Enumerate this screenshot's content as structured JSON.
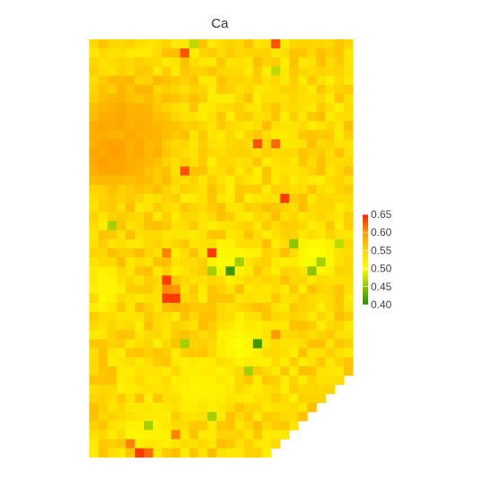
{
  "chart_data": {
    "type": "heatmap",
    "title": "Ca",
    "xlabel": "",
    "ylabel": "",
    "grid": false,
    "legend_placement": "right",
    "color_scale": {
      "min": 0.4,
      "max": 0.65,
      "ticks": [
        "0.65",
        "0.60",
        "0.55",
        "0.50",
        "0.45",
        "0.40"
      ],
      "stops": [
        {
          "value": 0.4,
          "color": "#2a8a00"
        },
        {
          "value": 0.45,
          "color": "#8fc400"
        },
        {
          "value": 0.5,
          "color": "#ffff00"
        },
        {
          "value": 0.55,
          "color": "#ffd700"
        },
        {
          "value": 0.6,
          "color": "#ff9a00"
        },
        {
          "value": 0.65,
          "color": "#ff2200"
        }
      ]
    },
    "columns": 29,
    "rows": 46,
    "row_last_column": [
      28,
      28,
      28,
      28,
      28,
      28,
      28,
      28,
      28,
      28,
      28,
      28,
      28,
      28,
      28,
      28,
      28,
      28,
      28,
      28,
      28,
      28,
      28,
      28,
      28,
      28,
      28,
      28,
      28,
      28,
      28,
      28,
      28,
      28,
      28,
      28,
      28,
      27,
      26,
      25,
      24,
      23,
      22,
      21,
      20,
      19
    ],
    "base_value": 0.545,
    "features": [
      {
        "type": "blob",
        "col": 2.5,
        "row": 11.0,
        "rx": 3.8,
        "ry": 5.2,
        "value": 0.645
      },
      {
        "type": "blob",
        "col": 3.5,
        "row": 10.0,
        "rx": 8.0,
        "ry": 9.0,
        "value": 0.585
      },
      {
        "type": "blob",
        "col": 8.5,
        "row": 27.5,
        "rx": 1.6,
        "ry": 2.2,
        "value": 0.62
      },
      {
        "type": "blob",
        "col": 15.0,
        "row": 24.0,
        "rx": 3.5,
        "ry": 3.0,
        "value": 0.5
      },
      {
        "type": "blob",
        "col": 24.5,
        "row": 23.5,
        "rx": 3.0,
        "ry": 3.5,
        "value": 0.495
      },
      {
        "type": "blob",
        "col": 16.0,
        "row": 33.0,
        "rx": 4.0,
        "ry": 4.0,
        "value": 0.505
      },
      {
        "type": "blob",
        "col": 6.0,
        "row": 42.5,
        "rx": 4.0,
        "ry": 3.0,
        "value": 0.51
      },
      {
        "type": "blob",
        "col": 12.0,
        "row": 38.0,
        "rx": 5.0,
        "ry": 4.0,
        "value": 0.515
      },
      {
        "type": "blob",
        "col": 1.5,
        "row": 27.0,
        "rx": 2.0,
        "ry": 4.0,
        "value": 0.51
      }
    ],
    "cells": [
      {
        "col": 20,
        "row": 0,
        "value": 0.63
      },
      {
        "col": 11,
        "row": 0,
        "value": 0.47
      },
      {
        "col": 10,
        "row": 1,
        "value": 0.63
      },
      {
        "col": 20,
        "row": 3,
        "value": 0.47
      },
      {
        "col": 18,
        "row": 11,
        "value": 0.63
      },
      {
        "col": 20,
        "row": 11,
        "value": 0.62
      },
      {
        "col": 10,
        "row": 14,
        "value": 0.63
      },
      {
        "col": 21,
        "row": 17,
        "value": 0.64
      },
      {
        "col": 8,
        "row": 23,
        "value": 0.61
      },
      {
        "col": 13,
        "row": 23,
        "value": 0.64
      },
      {
        "col": 15,
        "row": 25,
        "value": 0.41
      },
      {
        "col": 13,
        "row": 25,
        "value": 0.46
      },
      {
        "col": 16,
        "row": 24,
        "value": 0.46
      },
      {
        "col": 22,
        "row": 22,
        "value": 0.45
      },
      {
        "col": 24,
        "row": 25,
        "value": 0.45
      },
      {
        "col": 25,
        "row": 24,
        "value": 0.46
      },
      {
        "col": 27,
        "row": 22,
        "value": 0.47
      },
      {
        "col": 2,
        "row": 20,
        "value": 0.46
      },
      {
        "col": 8,
        "row": 26,
        "value": 0.64
      },
      {
        "col": 9,
        "row": 28,
        "value": 0.64
      },
      {
        "col": 8,
        "row": 28,
        "value": 0.64
      },
      {
        "col": 18,
        "row": 33,
        "value": 0.41
      },
      {
        "col": 17,
        "row": 36,
        "value": 0.46
      },
      {
        "col": 20,
        "row": 32,
        "value": 0.6
      },
      {
        "col": 10,
        "row": 33,
        "value": 0.46
      },
      {
        "col": 13,
        "row": 41,
        "value": 0.46
      },
      {
        "col": 5,
        "row": 45,
        "value": 0.64
      },
      {
        "col": 6,
        "row": 45,
        "value": 0.62
      },
      {
        "col": 4,
        "row": 44,
        "value": 0.61
      },
      {
        "col": 6,
        "row": 42,
        "value": 0.46
      },
      {
        "col": 9,
        "row": 43,
        "value": 0.61
      }
    ]
  }
}
